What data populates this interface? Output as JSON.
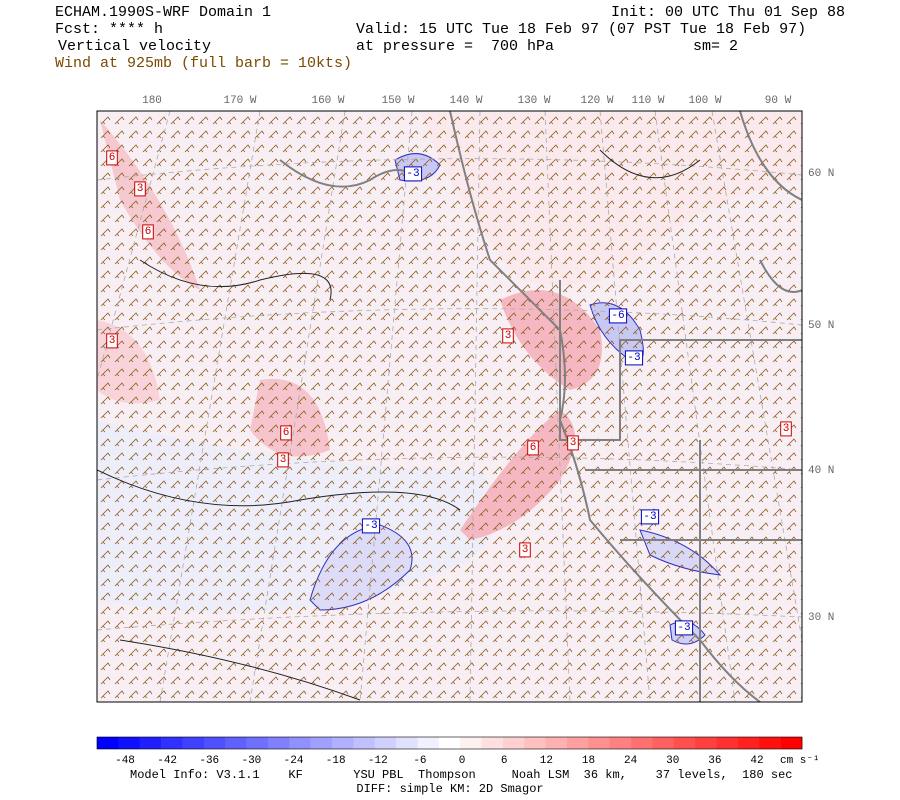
{
  "header": {
    "model": "ECHAM.1990S-WRF Domain 1",
    "forecast": "Fcst: **** h",
    "field": "Vertical velocity",
    "wind": "Wind at 925mb (full barb = 10kts)",
    "init": "Init: 00 UTC Thu 01 Sep 88",
    "valid": "Valid: 15 UTC Tue 18 Feb 97 (07 PST Tue 18 Feb 97)",
    "pressure": "at pressure =  700 hPa",
    "smoothing": "sm= 2"
  },
  "longitudes": [
    "180",
    "170 W",
    "160 W",
    "150 W",
    "140 W",
    "130 W",
    "120 W",
    "110 W",
    "100 W",
    "90 W"
  ],
  "latitudes": [
    "60 N",
    "50 N",
    "40 N",
    "30 N"
  ],
  "contour_labels": [
    "6",
    "3",
    "6",
    "3",
    "6",
    "3",
    "3",
    "6",
    "3",
    "3",
    "3",
    "-3",
    "-6",
    "-3",
    "-3",
    "-3",
    "-3"
  ],
  "colorbar": {
    "labels": [
      -48,
      -42,
      -36,
      -30,
      -24,
      -18,
      -12,
      -6,
      0,
      6,
      12,
      18,
      24,
      30,
      36,
      42
    ],
    "units": "cm s⁻¹",
    "colors": [
      "#0000ff",
      "#1010ff",
      "#2020ff",
      "#3030ff",
      "#4040ff",
      "#5050ff",
      "#6060ff",
      "#7070ff",
      "#8080ff",
      "#9090ff",
      "#a0a0ff",
      "#b0b0ff",
      "#c0c0ff",
      "#d0d0ff",
      "#e0e0ff",
      "#f0f0ff",
      "#ffffff",
      "#fff0f0",
      "#ffe0e0",
      "#ffd0d0",
      "#ffc0c0",
      "#ffb0b0",
      "#ffa0a0",
      "#ff9090",
      "#ff8080",
      "#ff7070",
      "#ff6060",
      "#ff5050",
      "#ff4040",
      "#ff3030",
      "#ff2020",
      "#ff1010",
      "#ff0000"
    ]
  },
  "footer": {
    "model_info": "Model Info: V3.1.1    KF       YSU PBL  Thompson     Noah LSM  36 km,    37 levels,  180 sec",
    "diff": "DIFF: simple KM: 2D Smagor"
  }
}
